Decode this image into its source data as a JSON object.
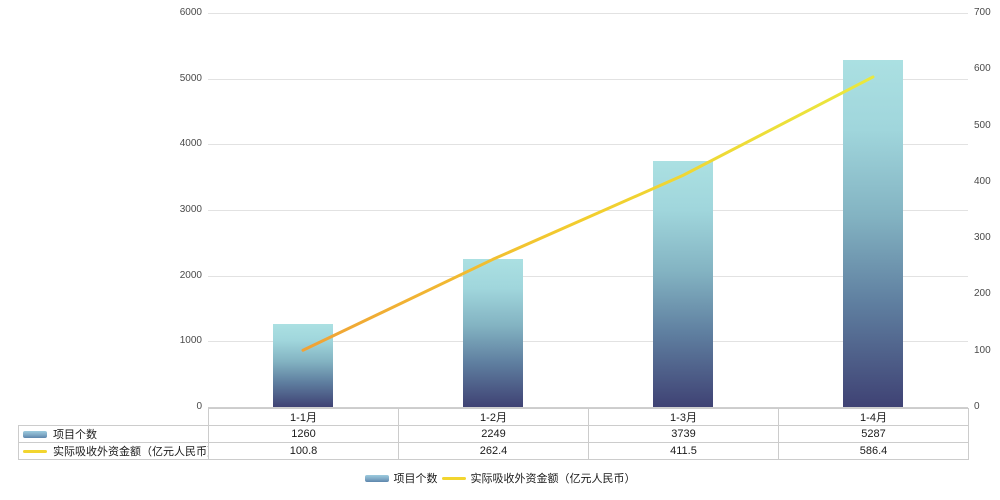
{
  "chart_data": {
    "type": "combo-bar-line",
    "categories": [
      "1-1月",
      "1-2月",
      "1-3月",
      "1-4月"
    ],
    "series": [
      {
        "name": "项目个数",
        "type": "bar",
        "axis": "left",
        "values": [
          1260,
          2249,
          3739,
          5287
        ]
      },
      {
        "name": "实际吸收外资金额（亿元人民币）",
        "type": "line",
        "axis": "right",
        "values": [
          100.8,
          262.4,
          411.5,
          586.4
        ]
      }
    ],
    "left_axis": {
      "min": 0,
      "max": 6000,
      "step": 1000,
      "ticks": [
        0,
        1000,
        2000,
        3000,
        4000,
        5000,
        6000
      ]
    },
    "right_axis": {
      "min": 0,
      "max": 700,
      "step": 100,
      "ticks": [
        0,
        100,
        200,
        300,
        400,
        500,
        600,
        700
      ]
    },
    "grid": true,
    "legend_position": "bottom",
    "colors": {
      "bar_gradient": [
        "#ABE0E2",
        "#A0D6DC",
        "#83B3C2",
        "#5F7FA0",
        "#3F4274"
      ],
      "line_gradient": [
        "#F0A236",
        "#F2CE2E",
        "#EAE83F"
      ],
      "gridline": "#E2E2E2",
      "axis_text": "#4A4A4A",
      "table_border": "#CCCCCC"
    }
  },
  "table": {
    "rows": [
      {
        "label": "项目个数",
        "swatch": "bar",
        "values": [
          "1260",
          "2249",
          "3739",
          "5287"
        ]
      },
      {
        "label": "实际吸收外资金额（亿元人民币）",
        "swatch": "line",
        "values": [
          "100.8",
          "262.4",
          "411.5",
          "586.4"
        ]
      }
    ]
  },
  "legend": {
    "items": [
      {
        "label": "项目个数",
        "swatch": "bar"
      },
      {
        "label": "实际吸收外资金额（亿元人民币）",
        "swatch": "line"
      }
    ]
  }
}
